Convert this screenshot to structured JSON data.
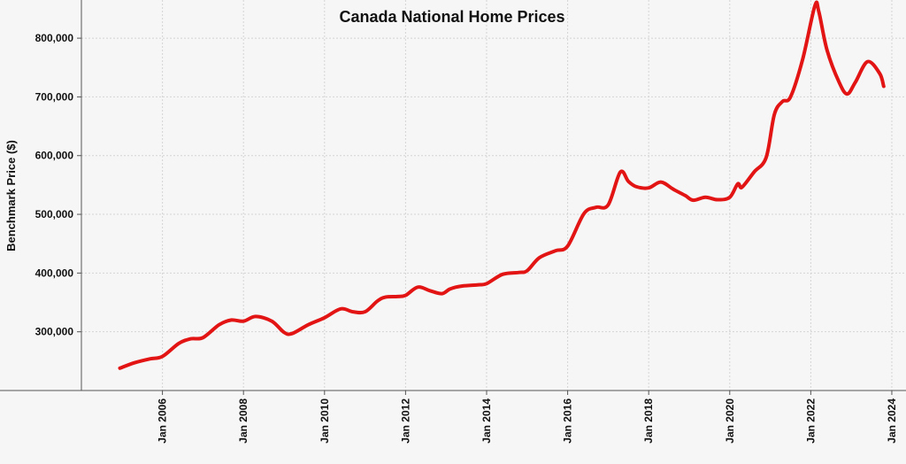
{
  "chart_data": {
    "type": "line",
    "title": "Canada National Home Prices",
    "xlabel": "",
    "ylabel": "Benchmark Price ($)",
    "xlim": [
      2004.0,
      2024.35
    ],
    "ylim": [
      200000,
      865000
    ],
    "x_ticks": [
      "Jan 2006",
      "Jan 2008",
      "Jan 2010",
      "Jan 2012",
      "Jan 2014",
      "Jan 2016",
      "Jan 2018",
      "Jan 2020",
      "Jan 2022",
      "Jan 2024"
    ],
    "y_ticks": [
      "300,000",
      "400,000",
      "500,000",
      "600,000",
      "700,000",
      "800,000"
    ],
    "grid": true,
    "series_color": "#e31414",
    "series": [
      {
        "x": [
          2004.95,
          2005.3,
          2005.7,
          2006.0,
          2006.4,
          2006.7,
          2007.0,
          2007.4,
          2007.7,
          2008.0,
          2008.3,
          2008.7,
          2009.0,
          2009.2,
          2009.6,
          2010.0,
          2010.4,
          2010.7,
          2011.0,
          2011.3,
          2011.5,
          2011.8,
          2012.0,
          2012.3,
          2012.6,
          2012.9,
          2013.1,
          2013.4,
          2013.8,
          2014.0,
          2014.4,
          2014.8,
          2015.0,
          2015.3,
          2015.7,
          2016.0,
          2016.4,
          2016.7,
          2017.0,
          2017.3,
          2017.5,
          2017.7,
          2018.0,
          2018.3,
          2018.6,
          2018.9,
          2019.1,
          2019.4,
          2019.7,
          2020.0,
          2020.2,
          2020.3,
          2020.6,
          2020.9,
          2021.1,
          2021.3,
          2021.5,
          2021.8,
          2022.1,
          2022.2,
          2022.4,
          2022.7,
          2022.9,
          2023.1,
          2023.4,
          2023.7,
          2023.8
        ],
        "y": [
          238000,
          247000,
          254000,
          258000,
          280000,
          288000,
          290000,
          312000,
          320000,
          318000,
          326000,
          318000,
          299000,
          297000,
          312000,
          324000,
          339000,
          334000,
          334000,
          352000,
          359000,
          360000,
          362000,
          376000,
          370000,
          365000,
          373000,
          378000,
          380000,
          382000,
          398000,
          401000,
          404000,
          426000,
          438000,
          446000,
          501000,
          512000,
          516000,
          572000,
          556000,
          547000,
          545000,
          555000,
          543000,
          532000,
          524000,
          529000,
          525000,
          529000,
          552000,
          546000,
          572000,
          597000,
          670000,
          692000,
          700000,
          764000,
          855000,
          845000,
          780000,
          725000,
          705000,
          725000,
          760000,
          740000,
          718000
        ]
      }
    ]
  }
}
